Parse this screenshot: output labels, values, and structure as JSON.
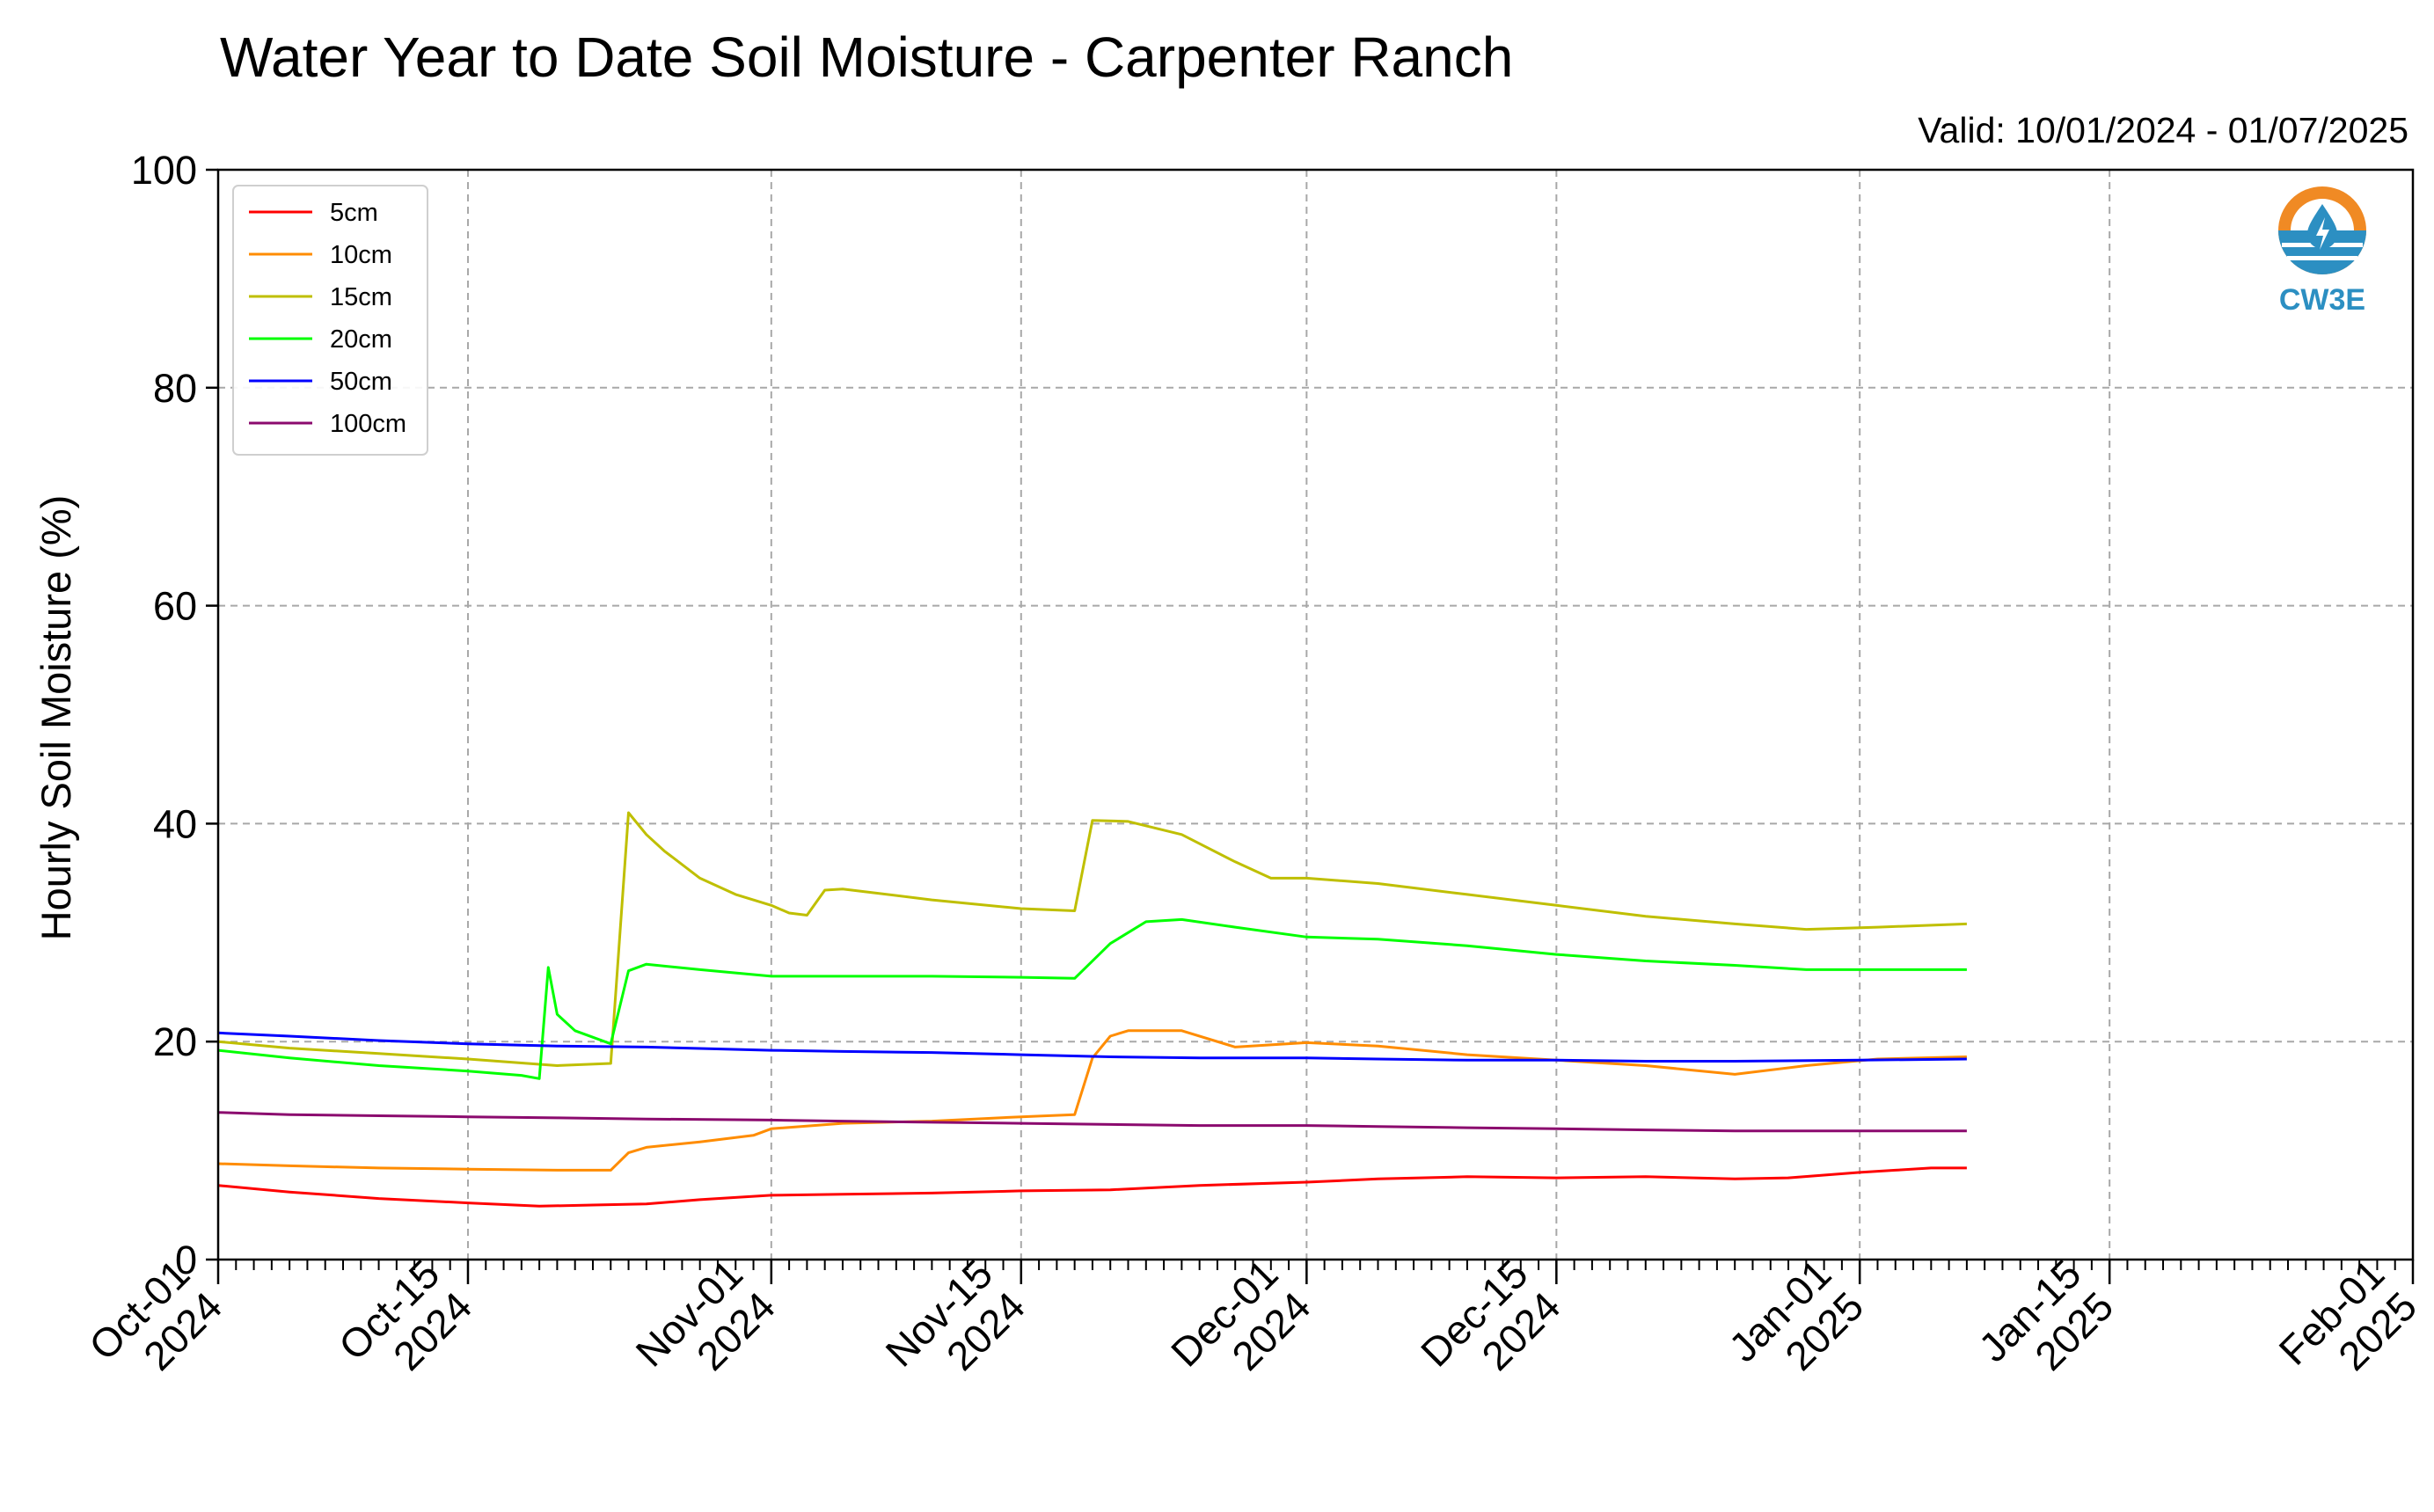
{
  "chart_data": {
    "type": "line",
    "title": "Water Year to Date Soil Moisture - Carpenter Ranch",
    "subtitle": "Valid: 10/01/2024 - 01/07/2025",
    "xlabel": "",
    "ylabel": "Hourly Soil Moisture (%)",
    "ylim": [
      0,
      100
    ],
    "xlim": [
      "2024-10-01",
      "2025-02-01"
    ],
    "yticks": [
      0,
      20,
      40,
      60,
      80,
      100
    ],
    "xticks": [
      {
        "date": "2024-10-01",
        "line1": "Oct-01",
        "line2": "2024"
      },
      {
        "date": "2024-10-15",
        "line1": "Oct-15",
        "line2": "2024"
      },
      {
        "date": "2024-11-01",
        "line1": "Nov-01",
        "line2": "2024"
      },
      {
        "date": "2024-11-15",
        "line1": "Nov-15",
        "line2": "2024"
      },
      {
        "date": "2024-12-01",
        "line1": "Dec-01",
        "line2": "2024"
      },
      {
        "date": "2024-12-15",
        "line1": "Dec-15",
        "line2": "2024"
      },
      {
        "date": "2025-01-01",
        "line1": "Jan-01",
        "line2": "2025"
      },
      {
        "date": "2025-01-15",
        "line1": "Jan-15",
        "line2": "2025"
      },
      {
        "date": "2025-02-01",
        "line1": "Feb-01",
        "line2": "2025"
      }
    ],
    "grid": true,
    "legend_position": "top-left",
    "logo_text": "CW3E",
    "series": [
      {
        "name": "5cm",
        "color": "#ff0000",
        "points": [
          [
            "2024-10-01",
            6.8
          ],
          [
            "2024-10-05",
            6.2
          ],
          [
            "2024-10-10",
            5.6
          ],
          [
            "2024-10-15",
            5.2
          ],
          [
            "2024-10-19",
            4.9
          ],
          [
            "2024-10-22",
            5.0
          ],
          [
            "2024-10-25",
            5.1
          ],
          [
            "2024-10-28",
            5.5
          ],
          [
            "2024-11-01",
            5.9
          ],
          [
            "2024-11-05",
            6.0
          ],
          [
            "2024-11-10",
            6.1
          ],
          [
            "2024-11-15",
            6.3
          ],
          [
            "2024-11-20",
            6.4
          ],
          [
            "2024-11-25",
            6.8
          ],
          [
            "2024-12-01",
            7.1
          ],
          [
            "2024-12-05",
            7.4
          ],
          [
            "2024-12-10",
            7.6
          ],
          [
            "2024-12-15",
            7.5
          ],
          [
            "2024-12-20",
            7.6
          ],
          [
            "2024-12-25",
            7.4
          ],
          [
            "2024-12-28",
            7.5
          ],
          [
            "2025-01-01",
            8.0
          ],
          [
            "2025-01-03",
            8.2
          ],
          [
            "2025-01-05",
            8.4
          ],
          [
            "2025-01-07",
            8.4
          ]
        ]
      },
      {
        "name": "10cm",
        "color": "#ff8c00",
        "points": [
          [
            "2024-10-01",
            8.8
          ],
          [
            "2024-10-05",
            8.6
          ],
          [
            "2024-10-10",
            8.4
          ],
          [
            "2024-10-15",
            8.3
          ],
          [
            "2024-10-20",
            8.2
          ],
          [
            "2024-10-23",
            8.2
          ],
          [
            "2024-10-24",
            9.8
          ],
          [
            "2024-10-25",
            10.3
          ],
          [
            "2024-10-28",
            10.8
          ],
          [
            "2024-10-31",
            11.4
          ],
          [
            "2024-11-01",
            12.0
          ],
          [
            "2024-11-05",
            12.5
          ],
          [
            "2024-11-10",
            12.7
          ],
          [
            "2024-11-15",
            13.1
          ],
          [
            "2024-11-18",
            13.3
          ],
          [
            "2024-11-19",
            18.5
          ],
          [
            "2024-11-20",
            20.5
          ],
          [
            "2024-11-21",
            21.0
          ],
          [
            "2024-11-24",
            21.0
          ],
          [
            "2024-11-27",
            19.5
          ],
          [
            "2024-12-01",
            19.9
          ],
          [
            "2024-12-05",
            19.6
          ],
          [
            "2024-12-10",
            18.8
          ],
          [
            "2024-12-15",
            18.3
          ],
          [
            "2024-12-20",
            17.8
          ],
          [
            "2024-12-25",
            17.0
          ],
          [
            "2024-12-29",
            17.8
          ],
          [
            "2025-01-02",
            18.4
          ],
          [
            "2025-01-07",
            18.6
          ]
        ]
      },
      {
        "name": "15cm",
        "color": "#bfbf00",
        "points": [
          [
            "2024-10-01",
            20.0
          ],
          [
            "2024-10-05",
            19.4
          ],
          [
            "2024-10-10",
            18.9
          ],
          [
            "2024-10-15",
            18.4
          ],
          [
            "2024-10-20",
            17.8
          ],
          [
            "2024-10-23",
            18.0
          ],
          [
            "2024-10-24",
            41.0
          ],
          [
            "2024-10-25",
            39.0
          ],
          [
            "2024-10-26",
            37.5
          ],
          [
            "2024-10-28",
            35.0
          ],
          [
            "2024-10-30",
            33.5
          ],
          [
            "2024-11-01",
            32.5
          ],
          [
            "2024-11-02",
            31.8
          ],
          [
            "2024-11-03",
            31.6
          ],
          [
            "2024-11-04",
            33.9
          ],
          [
            "2024-11-05",
            34.0
          ],
          [
            "2024-11-10",
            33.0
          ],
          [
            "2024-11-15",
            32.2
          ],
          [
            "2024-11-18",
            32.0
          ],
          [
            "2024-11-19",
            40.3
          ],
          [
            "2024-11-21",
            40.2
          ],
          [
            "2024-11-24",
            39.0
          ],
          [
            "2024-11-27",
            36.5
          ],
          [
            "2024-11-29",
            35.0
          ],
          [
            "2024-12-01",
            35.0
          ],
          [
            "2024-12-05",
            34.5
          ],
          [
            "2024-12-10",
            33.5
          ],
          [
            "2024-12-15",
            32.5
          ],
          [
            "2024-12-20",
            31.5
          ],
          [
            "2024-12-25",
            30.8
          ],
          [
            "2024-12-29",
            30.3
          ],
          [
            "2025-01-02",
            30.5
          ],
          [
            "2025-01-07",
            30.8
          ]
        ]
      },
      {
        "name": "20cm",
        "color": "#00ff00",
        "points": [
          [
            "2024-10-01",
            19.2
          ],
          [
            "2024-10-05",
            18.5
          ],
          [
            "2024-10-10",
            17.8
          ],
          [
            "2024-10-15",
            17.3
          ],
          [
            "2024-10-18",
            16.9
          ],
          [
            "2024-10-19",
            16.6
          ],
          [
            "2024-10-19T12",
            26.8
          ],
          [
            "2024-10-20",
            22.5
          ],
          [
            "2024-10-21",
            21.0
          ],
          [
            "2024-10-23",
            19.8
          ],
          [
            "2024-10-24",
            26.5
          ],
          [
            "2024-10-25",
            27.1
          ],
          [
            "2024-10-28",
            26.6
          ],
          [
            "2024-11-01",
            26.0
          ],
          [
            "2024-11-05",
            26.0
          ],
          [
            "2024-11-10",
            26.0
          ],
          [
            "2024-11-15",
            25.9
          ],
          [
            "2024-11-18",
            25.8
          ],
          [
            "2024-11-20",
            29.0
          ],
          [
            "2024-11-22",
            31.0
          ],
          [
            "2024-11-24",
            31.2
          ],
          [
            "2024-11-27",
            30.5
          ],
          [
            "2024-12-01",
            29.6
          ],
          [
            "2024-12-05",
            29.4
          ],
          [
            "2024-12-10",
            28.8
          ],
          [
            "2024-12-15",
            28.0
          ],
          [
            "2024-12-20",
            27.4
          ],
          [
            "2024-12-25",
            27.0
          ],
          [
            "2024-12-29",
            26.6
          ],
          [
            "2025-01-07",
            26.6
          ]
        ]
      },
      {
        "name": "50cm",
        "color": "#0000ff",
        "points": [
          [
            "2024-10-01",
            20.8
          ],
          [
            "2024-10-05",
            20.5
          ],
          [
            "2024-10-10",
            20.1
          ],
          [
            "2024-10-15",
            19.8
          ],
          [
            "2024-10-20",
            19.6
          ],
          [
            "2024-10-25",
            19.5
          ],
          [
            "2024-11-01",
            19.2
          ],
          [
            "2024-11-05",
            19.1
          ],
          [
            "2024-11-10",
            19.0
          ],
          [
            "2024-11-15",
            18.8
          ],
          [
            "2024-11-20",
            18.6
          ],
          [
            "2024-11-25",
            18.5
          ],
          [
            "2024-12-01",
            18.5
          ],
          [
            "2024-12-05",
            18.4
          ],
          [
            "2024-12-10",
            18.3
          ],
          [
            "2024-12-15",
            18.3
          ],
          [
            "2024-12-20",
            18.2
          ],
          [
            "2024-12-25",
            18.2
          ],
          [
            "2025-01-01",
            18.3
          ],
          [
            "2025-01-07",
            18.4
          ]
        ]
      },
      {
        "name": "100cm",
        "color": "#8b0a6e",
        "points": [
          [
            "2024-10-01",
            13.5
          ],
          [
            "2024-10-05",
            13.3
          ],
          [
            "2024-10-10",
            13.2
          ],
          [
            "2024-10-15",
            13.1
          ],
          [
            "2024-10-20",
            13.0
          ],
          [
            "2024-10-25",
            12.9
          ],
          [
            "2024-11-01",
            12.8
          ],
          [
            "2024-11-05",
            12.7
          ],
          [
            "2024-11-10",
            12.6
          ],
          [
            "2024-11-15",
            12.5
          ],
          [
            "2024-11-20",
            12.4
          ],
          [
            "2024-11-25",
            12.3
          ],
          [
            "2024-12-01",
            12.3
          ],
          [
            "2024-12-05",
            12.2
          ],
          [
            "2024-12-10",
            12.1
          ],
          [
            "2024-12-15",
            12.0
          ],
          [
            "2024-12-20",
            11.9
          ],
          [
            "2024-12-25",
            11.8
          ],
          [
            "2025-01-01",
            11.8
          ],
          [
            "2025-01-07",
            11.8
          ]
        ]
      }
    ]
  }
}
